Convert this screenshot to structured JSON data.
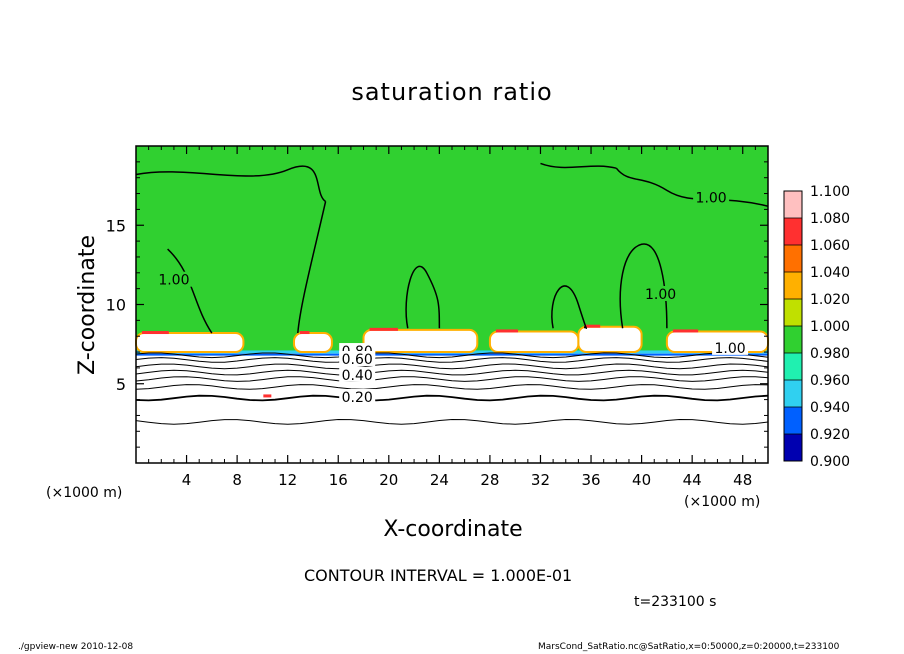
{
  "page": {
    "footer_left": "./gpview-new  2010-12-08",
    "footer_right": "MarsCond_SatRatio.nc@SatRatio,x=0:50000,z=0:20000,t=233100"
  },
  "chart_data": {
    "type": "heatmap",
    "title": "saturation ratio",
    "xlabel": "X-coordinate",
    "ylabel": "Z-coordinate",
    "x_unit": "(×1000 m)",
    "z_unit": "(×1000 m)",
    "xlim": [
      0,
      50
    ],
    "zlim": [
      0,
      20
    ],
    "xticks": [
      4,
      8,
      12,
      16,
      20,
      24,
      28,
      32,
      36,
      40,
      44,
      48
    ],
    "zticks": [
      5,
      10,
      15
    ],
    "contour_interval_text": "CONTOUR INTERVAL = 1.000E-01",
    "time_text": "t=233100 s",
    "colorbar": {
      "levels": [
        "1.100",
        "1.080",
        "1.060",
        "1.040",
        "1.020",
        "1.000",
        "0.980",
        "0.960",
        "0.940",
        "0.920",
        "0.900"
      ],
      "colors": [
        "#ffc0c0",
        "#ff3030",
        "#ff7000",
        "#ffb000",
        "#c0e000",
        "#30d030",
        "#20f0b0",
        "#30d0f0",
        "#0060ff",
        "#0000b0",
        "#6000a0"
      ]
    },
    "contour_labels": [
      {
        "text": "1.00",
        "x": 45.5,
        "z": 16.7
      },
      {
        "text": "1.00",
        "x": 3.0,
        "z": 11.5
      },
      {
        "text": "1.00",
        "x": 41.5,
        "z": 10.6
      },
      {
        "text": "1.00",
        "x": 47.0,
        "z": 7.2
      },
      {
        "text": "0.80",
        "x": 17.5,
        "z": 7.0
      },
      {
        "text": "0.60",
        "x": 17.5,
        "z": 6.5
      },
      {
        "text": "0.40",
        "x": 17.5,
        "z": 5.5
      },
      {
        "text": "0.20",
        "x": 17.5,
        "z": 4.1
      }
    ]
  }
}
